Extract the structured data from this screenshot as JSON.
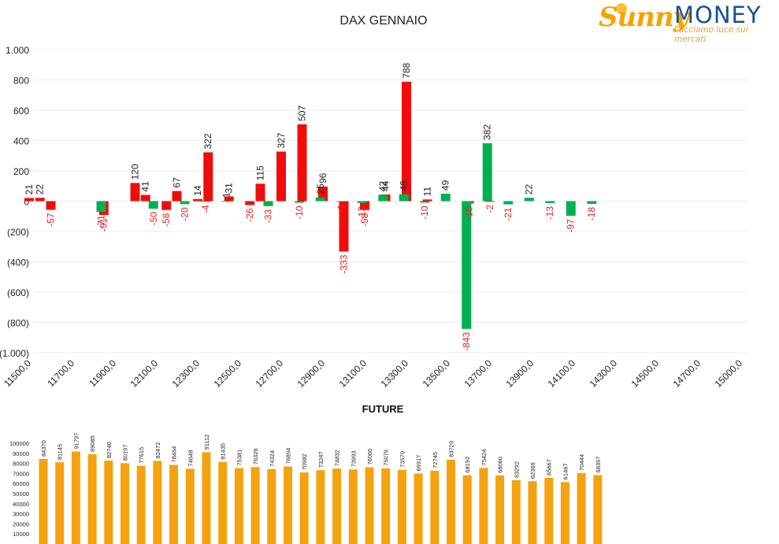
{
  "colors": {
    "positive": "#f10c0c",
    "negative": "#00b050",
    "label_negative": "#e52222",
    "label_positive": "#222222",
    "future_bar": "#f4a20f",
    "logo_orange": "#f5a300",
    "logo_blue": "#1b4f8f"
  },
  "logo": {
    "brand_left": "Sunny",
    "brand_right": "MONEY",
    "tagline": "Facciamo luce sui mercati"
  },
  "chart_data": [
    {
      "type": "bar",
      "title": "DAX GENNAIO",
      "xlabel": "",
      "ylabel": "",
      "ylim": [
        -1000,
        1000
      ],
      "y_ticks": [
        "1.000",
        "800",
        "600",
        "400",
        "200",
        "0",
        "(200)",
        "(400)",
        "(600)",
        "(800)",
        "(1.000)"
      ],
      "x_ticks": [
        "11500,0",
        "11700,0",
        "11900,0",
        "12100,0",
        "12300,0",
        "12500,0",
        "12700,0",
        "12900,0",
        "13100,0",
        "13300,0",
        "13500,0",
        "13700,0",
        "13900,0",
        "14100,0",
        "14300,0",
        "14500,0",
        "14700,0",
        "15000,0"
      ],
      "grid": true,
      "legend": "none",
      "series": [
        {
          "color_role": "positive",
          "points": [
            {
              "strike": 11500,
              "value": 21
            },
            {
              "strike": 11550,
              "value": 22
            },
            {
              "strike": 11600,
              "value": -57
            },
            {
              "strike": 11850,
              "value": -91
            },
            {
              "strike": 12000,
              "value": 120
            },
            {
              "strike": 12050,
              "value": 41
            },
            {
              "strike": 12150,
              "value": -58
            },
            {
              "strike": 12200,
              "value": 67
            },
            {
              "strike": 12300,
              "value": 14
            },
            {
              "strike": 12350,
              "value": 322
            },
            {
              "strike": 12450,
              "value": 31
            },
            {
              "strike": 12550,
              "value": -26
            },
            {
              "strike": 12600,
              "value": 115
            },
            {
              "strike": 12700,
              "value": 327
            },
            {
              "strike": 12800,
              "value": 507
            },
            {
              "strike": 12900,
              "value": 96
            },
            {
              "strike": 13000,
              "value": -333
            },
            {
              "strike": 13100,
              "value": -58
            },
            {
              "strike": 13200,
              "value": 44
            },
            {
              "strike": 13300,
              "value": 788
            },
            {
              "strike": 13400,
              "value": 11
            },
            {
              "strike": 13600,
              "value": -15
            },
            {
              "strike": 13700,
              "value": -2
            }
          ]
        },
        {
          "color_role": "negative",
          "points": [
            {
              "strike": 11800,
              "value": -71
            },
            {
              "strike": 12050,
              "value": -50
            },
            {
              "strike": 12200,
              "value": -20
            },
            {
              "strike": 12300,
              "value": -4
            },
            {
              "strike": 12400,
              "value": 1
            },
            {
              "strike": 12600,
              "value": -33
            },
            {
              "strike": 12750,
              "value": -10
            },
            {
              "strike": 12850,
              "value": 25
            },
            {
              "strike": 12950,
              "value": -1
            },
            {
              "strike": 13050,
              "value": -13
            },
            {
              "strike": 13150,
              "value": 42
            },
            {
              "strike": 13250,
              "value": 46
            },
            {
              "strike": 13350,
              "value": -10
            },
            {
              "strike": 13450,
              "value": 49
            },
            {
              "strike": 13550,
              "value": -843
            },
            {
              "strike": 13650,
              "value": 382
            },
            {
              "strike": 13750,
              "value": -21
            },
            {
              "strike": 13850,
              "value": 22
            },
            {
              "strike": 13950,
              "value": -13
            },
            {
              "strike": 14050,
              "value": -97
            },
            {
              "strike": 14150,
              "value": -18
            }
          ]
        }
      ]
    },
    {
      "type": "bar",
      "title": "FUTURE",
      "xlabel": "",
      "ylabel": "",
      "ylim": [
        0,
        100000
      ],
      "y_ticks": [
        "100000",
        "90000",
        "80000",
        "70000",
        "60000",
        "50000",
        "40000",
        "30000",
        "20000",
        "10000"
      ],
      "grid": false,
      "legend": "none",
      "values": [
        84370,
        81145,
        91797,
        89085,
        82740,
        80197,
        77615,
        82472,
        78464,
        74648,
        91112,
        81435,
        75381,
        76326,
        74324,
        76894,
        70982,
        73247,
        74832,
        73993,
        76066,
        75079,
        73579,
        69917,
        72745,
        83729,
        68192,
        75424,
        68060,
        63292,
        62369,
        65667,
        61467,
        70444,
        68397
      ]
    }
  ]
}
